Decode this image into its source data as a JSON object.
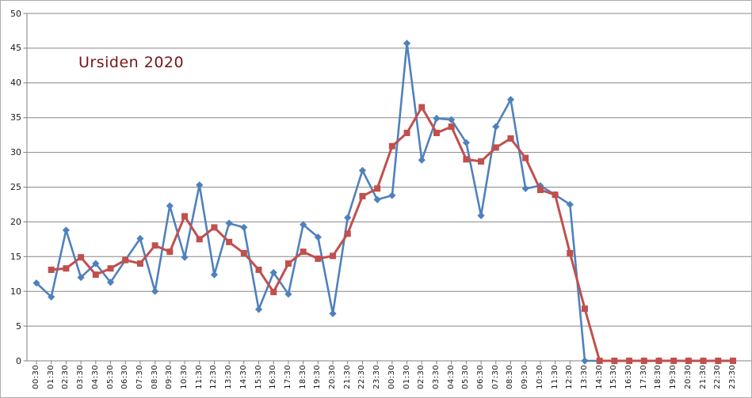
{
  "chart_data": {
    "type": "line",
    "title": "Ursiden 2020",
    "title_color": "#7a1315",
    "grid": true,
    "legend": "none",
    "ylim": [
      0,
      50
    ],
    "y_ticks": [
      0,
      5,
      10,
      15,
      20,
      25,
      30,
      35,
      40,
      45,
      50
    ],
    "categories": [
      "00:30",
      "01:30",
      "02:30",
      "03:30",
      "04:30",
      "05:30",
      "06:30",
      "07:30",
      "08:30",
      "09:30",
      "10:30",
      "11:30",
      "12:30",
      "13:30",
      "14:30",
      "15:30",
      "16:30",
      "17:30",
      "18:30",
      "19:30",
      "20:30",
      "21:30",
      "22:30",
      "23:30",
      "00:30",
      "01:30",
      "02:30",
      "03:30",
      "04:30",
      "05:30",
      "06:30",
      "07:30",
      "08:30",
      "09:30",
      "10:30",
      "11:30",
      "12:30",
      "13:30",
      "14:30",
      "15:30",
      "16:30",
      "17:30",
      "18:30",
      "19:30",
      "20:30",
      "21:30",
      "22:30",
      "23:30"
    ],
    "series": [
      {
        "name": "blue-diamond-series",
        "marker": "diamond",
        "color": "#4f81bd",
        "line_width": 2.6,
        "values": [
          11.2,
          9.2,
          18.8,
          12.0,
          14.0,
          11.3,
          14.5,
          17.6,
          10.0,
          22.3,
          14.9,
          25.3,
          12.4,
          19.8,
          19.2,
          7.4,
          12.7,
          9.6,
          19.6,
          17.8,
          6.8,
          20.6,
          27.4,
          23.2,
          23.8,
          45.7,
          28.9,
          34.9,
          34.7,
          31.4,
          20.9,
          33.7,
          37.6,
          24.8,
          25.2,
          23.9,
          22.5,
          0,
          0,
          0,
          0,
          0,
          0,
          0,
          0,
          0,
          0,
          0
        ]
      },
      {
        "name": "red-square-moving-average-series",
        "marker": "square",
        "color": "#c0504d",
        "line_width": 3,
        "values": [
          null,
          13.1,
          13.3,
          14.9,
          12.4,
          13.3,
          14.5,
          14.0,
          16.6,
          15.7,
          20.8,
          17.5,
          19.2,
          17.1,
          15.5,
          13.1,
          9.9,
          14.0,
          15.7,
          14.7,
          15.1,
          18.3,
          23.7,
          24.8,
          30.9,
          32.8,
          36.5,
          32.8,
          33.7,
          29.0,
          28.7,
          30.7,
          32.0,
          29.2,
          24.6,
          23.9,
          15.5,
          7.5,
          0,
          0,
          0,
          0,
          0,
          0,
          0,
          0,
          0,
          0
        ]
      }
    ]
  },
  "layout_colors": {
    "gridline": "#878787",
    "axis": "#808080",
    "tick_label": "#191919",
    "background": "#ffffff",
    "border": "#ababab"
  }
}
